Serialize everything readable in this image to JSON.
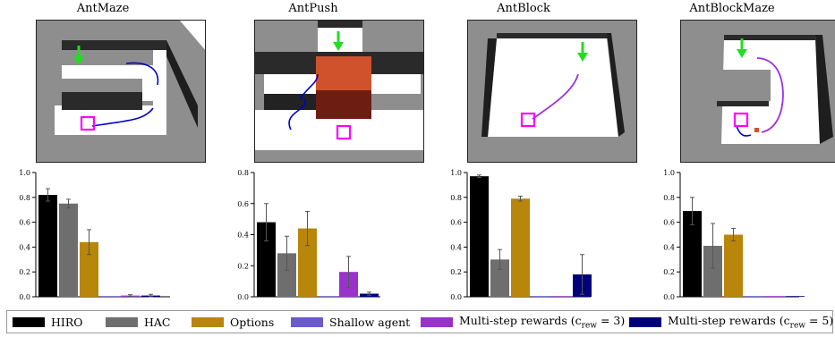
{
  "legend": [
    {
      "label": "HIRO",
      "color": "#000000"
    },
    {
      "label": "HAC",
      "color": "#6e6e6e"
    },
    {
      "label": "Options",
      "color": "#b8860b"
    },
    {
      "label": "Shallow agent",
      "color": "#6a5acd"
    },
    {
      "label": "Multi-step rewards (c",
      "sub": "rew",
      "suffix": " = 3)",
      "color": "#9932cc"
    },
    {
      "label": "Multi-step rewards (c",
      "sub": "rew",
      "suffix": " = 5)",
      "color": "#00007b"
    }
  ],
  "chart_data": [
    {
      "type": "bar",
      "title": "AntMaze",
      "categories": [
        "HIRO",
        "HAC",
        "Options",
        "Shallow agent",
        "Multi-step rewards (crew = 3)",
        "Multi-step rewards (crew = 5)"
      ],
      "values": [
        0.82,
        0.75,
        0.44,
        0.0,
        0.01,
        0.01
      ],
      "errors": [
        0.05,
        0.035,
        0.1,
        0.0,
        0.007,
        0.01
      ],
      "ylim": [
        0,
        1.0
      ],
      "yticks": [
        "0.0",
        "0.2",
        "0.4",
        "0.6",
        "0.8",
        "1.0"
      ],
      "ytick_values": [
        0,
        0.2,
        0.4,
        0.6,
        0.8,
        1.0
      ]
    },
    {
      "type": "bar",
      "title": "AntPush",
      "categories": [
        "HIRO",
        "HAC",
        "Options",
        "Shallow agent",
        "Multi-step rewards (crew = 3)",
        "Multi-step rewards (crew = 5)"
      ],
      "values": [
        0.48,
        0.28,
        0.44,
        0.0,
        0.16,
        0.02
      ],
      "errors": [
        0.12,
        0.11,
        0.11,
        0.0,
        0.1,
        0.01
      ],
      "ylim": [
        0,
        0.8
      ],
      "yticks": [
        "0.0",
        "0.2",
        "0.4",
        "0.6",
        "0.8"
      ],
      "ytick_values": [
        0,
        0.2,
        0.4,
        0.6,
        0.8
      ]
    },
    {
      "type": "bar",
      "title": "AntBlock",
      "categories": [
        "HIRO",
        "HAC",
        "Options",
        "Shallow agent",
        "Multi-step rewards (crew = 3)",
        "Multi-step rewards (crew = 5)"
      ],
      "values": [
        0.97,
        0.3,
        0.79,
        0.0,
        0.0,
        0.18
      ],
      "errors": [
        0.01,
        0.08,
        0.02,
        0.0,
        0.0,
        0.16
      ],
      "ylim": [
        0,
        1.0
      ],
      "yticks": [
        "0.0",
        "0.2",
        "0.4",
        "0.6",
        "0.8",
        "1.0"
      ],
      "ytick_values": [
        0,
        0.2,
        0.4,
        0.6,
        0.8,
        1.0
      ]
    },
    {
      "type": "bar",
      "title": "AntBlockMaze",
      "categories": [
        "HIRO",
        "HAC",
        "Options",
        "Shallow agent",
        "Multi-step rewards (crew = 3)",
        "Multi-step rewards (crew = 5)"
      ],
      "values": [
        0.69,
        0.41,
        0.5,
        0.0,
        0.0,
        0.0
      ],
      "errors": [
        0.11,
        0.18,
        0.05,
        0.0,
        0.0,
        0.0
      ],
      "ylim": [
        0,
        1.0
      ],
      "yticks": [
        "0.0",
        "0.2",
        "0.4",
        "0.6",
        "0.8",
        "1.0"
      ],
      "ytick_values": [
        0,
        0.2,
        0.4,
        0.6,
        0.8,
        1.0
      ]
    }
  ]
}
